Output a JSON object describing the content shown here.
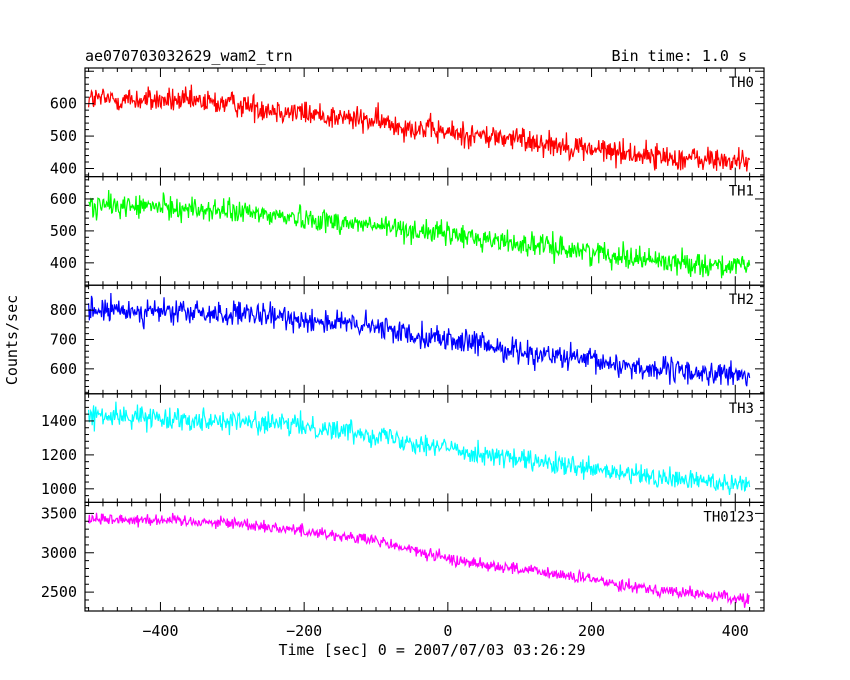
{
  "chart_data": {
    "type": "line",
    "title": "ae070703032629_wam2_trn",
    "subtitle": "Bin time: 1.0 s",
    "xlabel": "Time [sec] 0 = 2007/07/03 03:26:29",
    "ylabel": "Counts/sec",
    "xlim": [
      -505,
      440
    ],
    "x_ticks": [
      -400,
      -200,
      0,
      200,
      400
    ],
    "x_range": [
      -500,
      420
    ],
    "bin_time": 1.0,
    "grid": false,
    "panels": [
      {
        "name": "TH0",
        "color": "#ff0000",
        "ylim": [
          375,
          710
        ],
        "y_ticks": [
          400,
          500,
          600
        ],
        "trend": [
          {
            "x": -500,
            "y": 615
          },
          {
            "x": -400,
            "y": 610
          },
          {
            "x": -300,
            "y": 600
          },
          {
            "x": -200,
            "y": 570
          },
          {
            "x": -100,
            "y": 545
          },
          {
            "x": 0,
            "y": 510
          },
          {
            "x": 100,
            "y": 490
          },
          {
            "x": 200,
            "y": 460
          },
          {
            "x": 300,
            "y": 435
          },
          {
            "x": 420,
            "y": 420
          }
        ],
        "noise": 28
      },
      {
        "name": "TH1",
        "color": "#00ff00",
        "ylim": [
          330,
          670
        ],
        "y_ticks": [
          400,
          500,
          600
        ],
        "trend": [
          {
            "x": -500,
            "y": 580
          },
          {
            "x": -400,
            "y": 575
          },
          {
            "x": -300,
            "y": 560
          },
          {
            "x": -200,
            "y": 540
          },
          {
            "x": -100,
            "y": 515
          },
          {
            "x": 0,
            "y": 490
          },
          {
            "x": 100,
            "y": 460
          },
          {
            "x": 200,
            "y": 435
          },
          {
            "x": 300,
            "y": 405
          },
          {
            "x": 420,
            "y": 385
          }
        ],
        "noise": 26
      },
      {
        "name": "TH2",
        "color": "#0000ff",
        "ylim": [
          515,
          885
        ],
        "y_ticks": [
          600,
          700,
          800
        ],
        "trend": [
          {
            "x": -500,
            "y": 800
          },
          {
            "x": -400,
            "y": 795
          },
          {
            "x": -300,
            "y": 785
          },
          {
            "x": -200,
            "y": 770
          },
          {
            "x": -100,
            "y": 740
          },
          {
            "x": 0,
            "y": 700
          },
          {
            "x": 100,
            "y": 660
          },
          {
            "x": 200,
            "y": 625
          },
          {
            "x": 300,
            "y": 595
          },
          {
            "x": 420,
            "y": 575
          }
        ],
        "noise": 30
      },
      {
        "name": "TH3",
        "color": "#00ffff",
        "ylim": [
          920,
          1560
        ],
        "y_ticks": [
          1000,
          1200,
          1400
        ],
        "trend": [
          {
            "x": -500,
            "y": 1430
          },
          {
            "x": -400,
            "y": 1420
          },
          {
            "x": -300,
            "y": 1400
          },
          {
            "x": -200,
            "y": 1370
          },
          {
            "x": -100,
            "y": 1320
          },
          {
            "x": 0,
            "y": 1240
          },
          {
            "x": 100,
            "y": 1170
          },
          {
            "x": 200,
            "y": 1110
          },
          {
            "x": 300,
            "y": 1060
          },
          {
            "x": 420,
            "y": 1030
          }
        ],
        "noise": 45
      },
      {
        "name": "TH0123",
        "color": "#ff00ff",
        "ylim": [
          2260,
          3640
        ],
        "y_ticks": [
          2500,
          3000,
          3500
        ],
        "trend": [
          {
            "x": -500,
            "y": 3430
          },
          {
            "x": -400,
            "y": 3420
          },
          {
            "x": -300,
            "y": 3380
          },
          {
            "x": -200,
            "y": 3280
          },
          {
            "x": -100,
            "y": 3150
          },
          {
            "x": 0,
            "y": 2920
          },
          {
            "x": 100,
            "y": 2790
          },
          {
            "x": 200,
            "y": 2660
          },
          {
            "x": 300,
            "y": 2520
          },
          {
            "x": 420,
            "y": 2400
          }
        ],
        "noise": 55
      }
    ]
  }
}
